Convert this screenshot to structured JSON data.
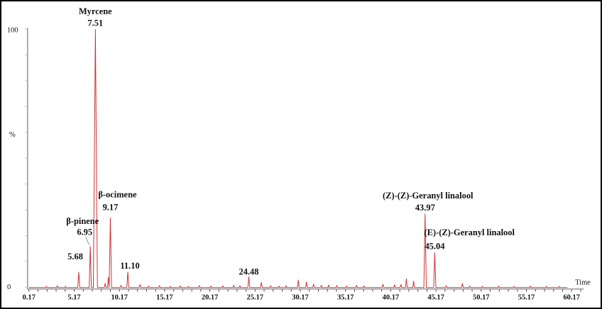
{
  "figure": {
    "background": "#ffffff",
    "border_color": "#000000",
    "colors": {
      "trace": "#cc3333",
      "axis": "#9a9a9a",
      "tick": "#3a3a3a",
      "text": "#111111",
      "leader": "#8a8a8a"
    }
  },
  "chart_data": {
    "type": "line",
    "kind": "gc-chromatogram",
    "title": "",
    "xlabel": "Time",
    "ylabel": "%",
    "xlim": [
      0.17,
      61.3
    ],
    "ylim": [
      0,
      100
    ],
    "grid": false,
    "y_tick_labels": [
      "100",
      "0"
    ],
    "y_minor_tick_step": 10,
    "x_minor_tick_step": 1,
    "x_tick_labels": [
      "0.17",
      "5.17",
      "10.17",
      "15.17",
      "20.17",
      "25.17",
      "30.17",
      "35.17",
      "40.17",
      "45.17",
      "50.17",
      "55.17",
      "60.17"
    ],
    "peaks": [
      {
        "time": 5.68,
        "height": 6,
        "label": "5.68",
        "dx": -5,
        "gap": 18
      },
      {
        "time": 6.95,
        "height": 16,
        "label": "6.95",
        "compound": "β-pinene",
        "dx": -8,
        "name_dx": -11,
        "gap": 16,
        "name_gap": 16,
        "leader": true
      },
      {
        "time": 7.51,
        "height": 100,
        "label": "7.51",
        "compound": "Myrcene",
        "gap": 5,
        "name_gap": 17
      },
      {
        "time": 9.17,
        "height": 27,
        "label": "9.17",
        "compound": "β-ocimene",
        "name_dx": 10,
        "gap": 11,
        "name_gap": 18
      },
      {
        "time": 11.1,
        "height": 6,
        "label": "11.10",
        "dx": 3,
        "gap": 5
      },
      {
        "time": 24.48,
        "height": 4.2,
        "label": "24.48",
        "gap": 3
      },
      {
        "time": 43.97,
        "height": 28.5,
        "label": "43.97",
        "compound": "(Z)-(Z)-Geranyl linalool",
        "name_dx": 4,
        "gap": 5,
        "name_gap": 17
      },
      {
        "time": 45.04,
        "height": 13.5,
        "label": "45.04",
        "compound": "(E)-(Z)-Geranyl linalool",
        "name_dx": 49,
        "gap": 5,
        "name_gap": 20
      }
    ],
    "minor_peaks": [
      [
        8.6,
        1.6
      ],
      [
        8.95,
        4.0
      ],
      [
        10.35,
        0.9
      ],
      [
        12.45,
        1.2
      ],
      [
        25.87,
        2.0
      ],
      [
        29.95,
        2.9
      ],
      [
        30.85,
        2.2
      ],
      [
        31.65,
        1.4
      ],
      [
        39.3,
        1.3
      ],
      [
        41.3,
        1.2
      ],
      [
        41.9,
        3.4
      ],
      [
        42.7,
        2.5
      ],
      [
        48.1,
        1.6
      ]
    ],
    "noise_bumps": [
      [
        2.1,
        0.5
      ],
      [
        3.3,
        0.7
      ],
      [
        4.2,
        0.5
      ],
      [
        13.4,
        0.6
      ],
      [
        14.6,
        0.8
      ],
      [
        15.8,
        0.5
      ],
      [
        16.9,
        0.7
      ],
      [
        17.8,
        0.5
      ],
      [
        19.0,
        0.8
      ],
      [
        20.3,
        0.6
      ],
      [
        21.6,
        0.7
      ],
      [
        22.8,
        0.9
      ],
      [
        23.5,
        0.7
      ],
      [
        26.9,
        0.8
      ],
      [
        27.8,
        0.6
      ],
      [
        28.6,
        0.7
      ],
      [
        32.5,
        0.9
      ],
      [
        33.3,
        1.0
      ],
      [
        34.2,
        0.8
      ],
      [
        35.3,
        0.6
      ],
      [
        36.4,
        0.9
      ],
      [
        37.2,
        0.7
      ],
      [
        40.6,
        1.1
      ],
      [
        46.3,
        0.8
      ],
      [
        48.9,
        0.6
      ],
      [
        50.3,
        0.5
      ],
      [
        52.1,
        0.6
      ],
      [
        53.8,
        0.5
      ],
      [
        55.6,
        0.6
      ],
      [
        57.4,
        0.5
      ],
      [
        58.8,
        0.5
      ]
    ]
  }
}
